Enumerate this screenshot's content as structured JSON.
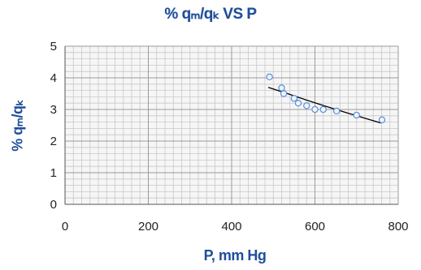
{
  "chart_data": {
    "type": "scatter",
    "title": "% qₘ/qₖ VS P",
    "xlabel": "P, mm Hg",
    "ylabel": "% qₘ/qₖ",
    "xlim": [
      0,
      800
    ],
    "ylim": [
      0,
      5
    ],
    "xticks": [
      "0",
      "200",
      "400",
      "600",
      "800"
    ],
    "yticks": [
      "0",
      "1",
      "2",
      "3",
      "4",
      "5"
    ],
    "grid": true,
    "points": [
      {
        "x": 491,
        "y": 4.03
      },
      {
        "x": 520,
        "y": 3.68
      },
      {
        "x": 525,
        "y": 3.5
      },
      {
        "x": 550,
        "y": 3.35
      },
      {
        "x": 560,
        "y": 3.2
      },
      {
        "x": 580,
        "y": 3.12
      },
      {
        "x": 600,
        "y": 3.0
      },
      {
        "x": 620,
        "y": 3.0
      },
      {
        "x": 652,
        "y": 2.95
      },
      {
        "x": 700,
        "y": 2.82
      },
      {
        "x": 761,
        "y": 2.67
      }
    ],
    "trendline": {
      "x_start": 488,
      "x_end": 758,
      "y_start": 3.7,
      "y_end": 2.57
    },
    "colors": {
      "marker": "#5b8fd6",
      "grid_major": "#9a9a9a",
      "grid_minor": "#c8c8c8",
      "plot_bg": "#f6f6f6",
      "trend": "#000000",
      "label": "#1f4e9a"
    }
  }
}
